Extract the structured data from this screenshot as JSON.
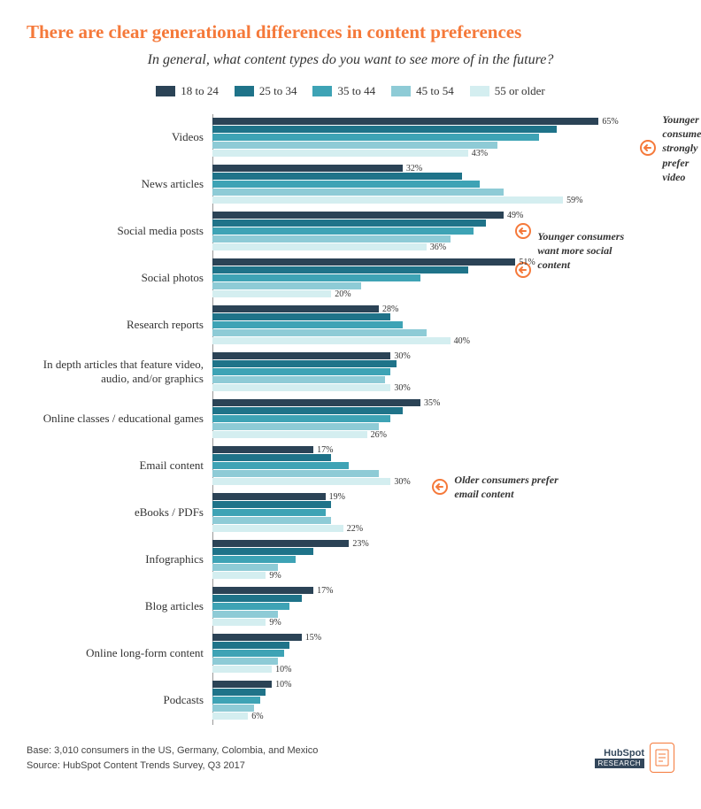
{
  "title": "There are clear generational differences in content preferences",
  "subtitle": "In general, what content types do you want to see more of in the future?",
  "legend": [
    {
      "label": "18 to 24",
      "color": "#2b4356"
    },
    {
      "label": "25 to 34",
      "color": "#1f7389"
    },
    {
      "label": "35 to 44",
      "color": "#3ea3b5"
    },
    {
      "label": "45 to 54",
      "color": "#8ecbd6"
    },
    {
      "label": "55 or older",
      "color": "#d4eef0"
    }
  ],
  "x_max": 70,
  "categories": [
    {
      "label": "Videos",
      "values": [
        65,
        58,
        55,
        48,
        43
      ],
      "show": {
        "0": "65%",
        "4": "43%"
      }
    },
    {
      "label": "News articles",
      "values": [
        32,
        42,
        45,
        49,
        59
      ],
      "show": {
        "0": "32%",
        "4": "59%"
      }
    },
    {
      "label": "Social media posts",
      "values": [
        49,
        46,
        44,
        40,
        36
      ],
      "show": {
        "0": "49%",
        "4": "36%"
      }
    },
    {
      "label": "Social photos",
      "values": [
        51,
        43,
        35,
        25,
        20
      ],
      "show": {
        "0": "51%",
        "4": "20%"
      }
    },
    {
      "label": "Research reports",
      "values": [
        28,
        30,
        32,
        36,
        40
      ],
      "show": {
        "0": "28%",
        "4": "40%"
      }
    },
    {
      "label": "In depth articles that feature video, audio, and/or graphics",
      "values": [
        30,
        31,
        30,
        29,
        30
      ],
      "show": {
        "0": "30%",
        "4": "30%"
      }
    },
    {
      "label": "Online classes / educational games",
      "values": [
        35,
        32,
        30,
        28,
        26
      ],
      "show": {
        "0": "35%",
        "4": "26%"
      }
    },
    {
      "label": "Email content",
      "values": [
        17,
        20,
        23,
        28,
        30
      ],
      "show": {
        "0": "17%",
        "4": "30%"
      }
    },
    {
      "label": "eBooks / PDFs",
      "values": [
        19,
        20,
        19,
        20,
        22
      ],
      "show": {
        "0": "19%",
        "4": "22%"
      }
    },
    {
      "label": "Infographics",
      "values": [
        23,
        17,
        14,
        11,
        9
      ],
      "show": {
        "0": "23%",
        "4": "9%"
      }
    },
    {
      "label": "Blog articles",
      "values": [
        17,
        15,
        13,
        11,
        9
      ],
      "show": {
        "0": "17%",
        "4": "9%"
      }
    },
    {
      "label": "Online long-form content",
      "values": [
        15,
        13,
        12,
        11,
        10
      ],
      "show": {
        "0": "15%",
        "4": "10%"
      }
    },
    {
      "label": "Podcasts",
      "values": [
        10,
        9,
        8,
        7,
        6
      ],
      "show": {
        "0": "10%",
        "4": "6%"
      }
    }
  ],
  "annotations": [
    {
      "text": "Younger consumers strongly prefer video",
      "row": 0,
      "barIndex": 0,
      "multiline": true
    },
    {
      "text": "Younger consumers want more social content",
      "row": 2,
      "barIndex": 2,
      "multiline": true,
      "double": true
    },
    {
      "text": "Older consumers prefer email content",
      "row": 7,
      "barIndex": 4,
      "multiline": true
    }
  ],
  "annot_color": "#f5793a",
  "footer": {
    "base": "Base: 3,010 consumers in the US, Germany, Colombia, and Mexico",
    "source": "Source: HubSpot Content Trends Survey, Q3 2017",
    "brand": "HubSpot",
    "badge": "RESEARCH"
  }
}
